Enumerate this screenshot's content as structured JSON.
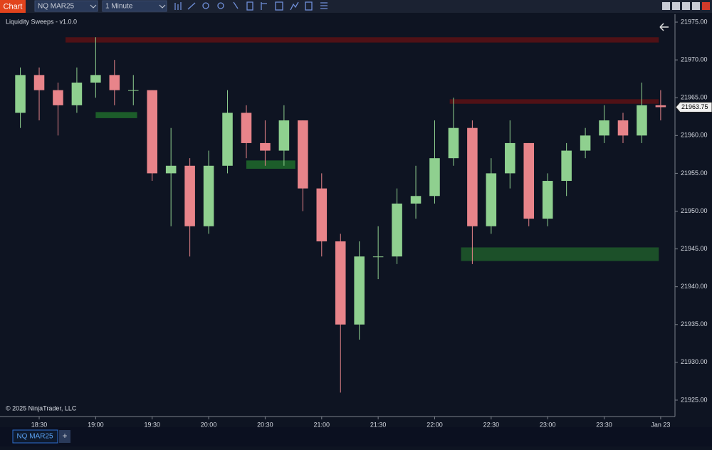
{
  "toolbar": {
    "app": "Chart",
    "instrument": "NQ MAR25",
    "interval": "1 Minute"
  },
  "chart_data": {
    "type": "candlestick",
    "title": "Liquidity Sweeps - v1.0.0",
    "x": [
      20,
      30,
      40,
      50,
      60,
      70,
      80,
      90,
      100,
      110,
      120,
      130,
      140,
      150,
      160,
      170,
      180,
      190,
      200,
      210,
      220,
      230,
      240,
      250,
      260,
      270,
      280,
      290,
      300,
      310,
      320,
      330,
      340,
      350,
      360
    ],
    "open": [
      21963,
      21968,
      21966,
      21964,
      21967,
      21968,
      21966,
      21966,
      21955,
      21956,
      21948,
      21956,
      21963,
      21959,
      21958,
      21962,
      21953,
      21946,
      21935,
      21944,
      21944,
      21951,
      21952,
      21957,
      21961,
      21948,
      21955,
      21959,
      21949,
      21954,
      21958,
      21960,
      21962,
      21960,
      21964
    ],
    "high": [
      21969,
      21969,
      21967,
      21969,
      21973,
      21970,
      21968,
      21966,
      21961,
      21957,
      21958,
      21966,
      21964,
      21962,
      21964,
      21962,
      21955,
      21947,
      21946,
      21948,
      21953,
      21956,
      21962,
      21965,
      21962,
      21957,
      21962,
      21959,
      21955,
      21959,
      21961,
      21964,
      21963,
      21967,
      21966
    ],
    "low": [
      21961,
      21962,
      21960,
      21963,
      21965,
      21964,
      21964,
      21954,
      21948,
      21944,
      21947,
      21955,
      21957,
      21956,
      21956,
      21950,
      21944,
      21926,
      21933,
      21941,
      21943,
      21949,
      21951,
      21956,
      21943,
      21947,
      21953,
      21948,
      21948,
      21952,
      21957,
      21959,
      21959,
      21959,
      21962
    ],
    "close": [
      21968,
      21966,
      21964,
      21967,
      21968,
      21966,
      21966,
      21955,
      21956,
      21948,
      21956,
      21963,
      21959,
      21958,
      21962,
      21953,
      21946,
      21935,
      21944,
      21944,
      21951,
      21952,
      21957,
      21961,
      21948,
      21955,
      21959,
      21949,
      21954,
      21958,
      21960,
      21962,
      21960,
      21964,
      21963.75
    ],
    "up_color": "#8fd08f",
    "down_color": "#e8848a",
    "zones": [
      {
        "from": 44,
        "to": 359,
        "top": 21973.0,
        "bottom": 21972.3,
        "color": "#5c1014"
      },
      {
        "from": 248,
        "to": 359,
        "top": 21964.8,
        "bottom": 21964.2,
        "color": "#5c1014"
      },
      {
        "from": 60,
        "to": 82,
        "top": 21963.1,
        "bottom": 21962.3,
        "color": "#1e6a2c"
      },
      {
        "from": 140,
        "to": 166,
        "top": 21956.7,
        "bottom": 21955.6,
        "color": "#1e6a2c"
      },
      {
        "from": 254,
        "to": 359,
        "top": 21945.2,
        "bottom": 21943.4,
        "color": "#1e5a2a"
      }
    ],
    "xlim": [
      9.2,
      367.6
    ],
    "ylim": [
      21922.83,
      21976.04
    ],
    "xticks": [
      {
        "value": 30,
        "label": "18:30"
      },
      {
        "value": 60,
        "label": "19:00"
      },
      {
        "value": 90,
        "label": "19:30"
      },
      {
        "value": 120,
        "label": "20:00"
      },
      {
        "value": 150,
        "label": "20:30"
      },
      {
        "value": 180,
        "label": "21:00"
      },
      {
        "value": 210,
        "label": "21:30"
      },
      {
        "value": 240,
        "label": "22:00"
      },
      {
        "value": 270,
        "label": "22:30"
      },
      {
        "value": 300,
        "label": "23:00"
      },
      {
        "value": 330,
        "label": "23:30"
      },
      {
        "value": 360,
        "label": "Jan 23"
      }
    ],
    "yticks": [
      {
        "value": 21925,
        "label": "21925.00"
      },
      {
        "value": 21930,
        "label": "21930.00"
      },
      {
        "value": 21935,
        "label": "21935.00"
      },
      {
        "value": 21940,
        "label": "21940.00"
      },
      {
        "value": 21945,
        "label": "21945.00"
      },
      {
        "value": 21950,
        "label": "21950.00"
      },
      {
        "value": 21955,
        "label": "21955.00"
      },
      {
        "value": 21960,
        "label": "21960.00"
      },
      {
        "value": 21965,
        "label": "21965.00"
      },
      {
        "value": 21970,
        "label": "21970.00"
      },
      {
        "value": 21975,
        "label": "21975.00"
      }
    ]
  },
  "copyright": "© 2025 NinjaTrader, LLC",
  "tabs": {
    "active": "NQ MAR25",
    "add": "+"
  }
}
